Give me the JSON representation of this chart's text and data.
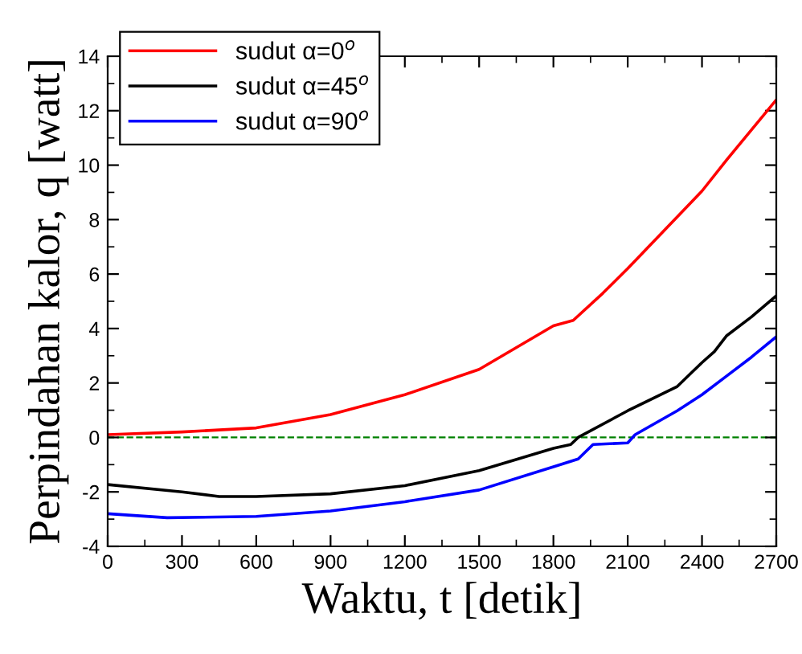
{
  "chart_data": {
    "type": "line",
    "xlabel": "Waktu, t [detik]",
    "ylabel": "Perpindahan kalor, q [watt]",
    "xlim": [
      0,
      2700
    ],
    "xticks": [
      0,
      300,
      600,
      900,
      1200,
      1500,
      1800,
      2100,
      2400,
      2700
    ],
    "ylim": [
      -4,
      14
    ],
    "yticks": [
      -4,
      -2,
      0,
      2,
      4,
      6,
      8,
      10,
      12,
      14
    ],
    "grid": false,
    "legend": "top left",
    "line_style": "solid",
    "marker": "none",
    "ref_lines": [
      {
        "axis": "y",
        "value": 0,
        "color": "#008000",
        "line_style": "dashed"
      }
    ],
    "series": [
      {
        "name": "sudut α=0$^{o}$",
        "color": "#ff0000",
        "x": [
          0,
          300,
          600,
          900,
          1200,
          1500,
          1800,
          1880,
          2000,
          2100,
          2400,
          2500,
          2700
        ],
        "values": [
          0.1,
          0.2,
          0.35,
          0.84,
          1.57,
          2.5,
          4.1,
          4.3,
          5.3,
          6.2,
          9.05,
          10.2,
          12.4
        ]
      },
      {
        "name": "sudut α=45$^{o}$",
        "color": "#000000",
        "x": [
          0,
          300,
          450,
          600,
          900,
          1200,
          1500,
          1800,
          1870,
          1900,
          2100,
          2300,
          2400,
          2450,
          2500,
          2600,
          2700
        ],
        "values": [
          -1.73,
          -2.0,
          -2.17,
          -2.17,
          -2.07,
          -1.77,
          -1.22,
          -0.4,
          -0.26,
          0,
          0.98,
          1.87,
          2.75,
          3.15,
          3.74,
          4.43,
          5.2
        ]
      },
      {
        "name": "sudut α=90$^{o}$",
        "color": "#0000ff",
        "x": [
          0,
          240,
          600,
          900,
          1200,
          1500,
          1800,
          1900,
          1960,
          2100,
          2130,
          2300,
          2400,
          2500,
          2600,
          2700
        ],
        "values": [
          -2.8,
          -2.95,
          -2.9,
          -2.7,
          -2.36,
          -1.93,
          -1.08,
          -0.79,
          -0.26,
          -0.2,
          0.1,
          0.98,
          1.57,
          2.26,
          2.95,
          3.7
        ]
      }
    ]
  }
}
